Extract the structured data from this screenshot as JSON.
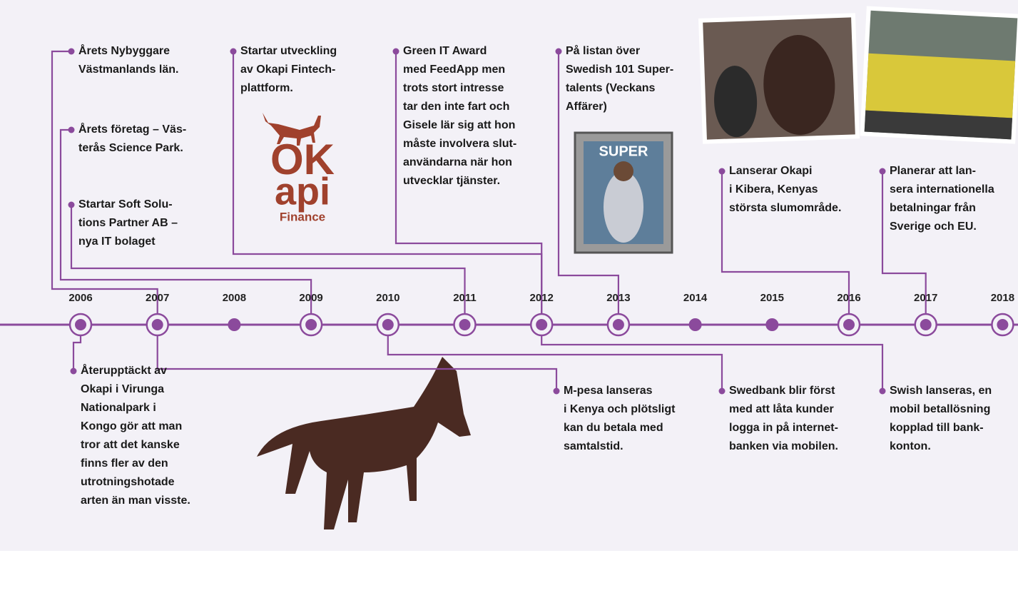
{
  "years": [
    "2006",
    "2007",
    "2008",
    "2009",
    "2010",
    "2011",
    "2012",
    "2013",
    "2014",
    "2015",
    "2016",
    "2017",
    "2018"
  ],
  "events_above": [
    {
      "lines": [
        "Årets Nybyggare",
        "Västmanlands län."
      ]
    },
    {
      "lines": [
        "Årets företag – Väs-",
        "terås Science Park."
      ]
    },
    {
      "lines": [
        "Startar Soft Solu-",
        "tions Partner AB –",
        "nya IT bolaget"
      ]
    },
    {
      "lines": [
        "Startar utveckling",
        "av Okapi Fintech-",
        "plattform."
      ]
    },
    {
      "lines": [
        "Green IT Award",
        "med FeedApp men",
        "trots stort intresse",
        "tar den inte fart och",
        "Gisele lär sig att hon",
        "måste involvera slut-",
        "användarna när hon",
        "utvecklar tjänster."
      ]
    },
    {
      "lines": [
        "På listan över",
        "Swedish 101 Super-",
        "talents (Veckans",
        "Affärer)"
      ]
    },
    {
      "lines": [
        "Lanserar Okapi",
        "i Kibera, Kenyas",
        "största slumområde."
      ]
    },
    {
      "lines": [
        "Planerar att lan-",
        "sera internationella",
        "betalningar från",
        "Sverige och EU."
      ]
    }
  ],
  "events_below": [
    {
      "lines": [
        "Återupptäckt av",
        "Okapi i Virunga",
        "Nationalpark i",
        "Kongo gör att man",
        "tror att det kanske",
        "finns fler av den",
        "utrotningshotade",
        "arten än man visste."
      ]
    },
    {
      "lines": [
        "M-pesa lanseras",
        "i Kenya och plötsligt",
        "kan du betala med",
        "samtalstid."
      ]
    },
    {
      "lines": [
        "Swedbank blir först",
        "med att låta kunder",
        "logga in på internet-",
        "banken via mobilen."
      ]
    },
    {
      "lines": [
        "Swish lanseras, en",
        "mobil betallösning",
        "kopplad till bank-",
        "konton."
      ]
    }
  ],
  "logo": {
    "top": "OK",
    "middle": "api",
    "bottom": "Finance"
  },
  "magazine": "SUPER"
}
